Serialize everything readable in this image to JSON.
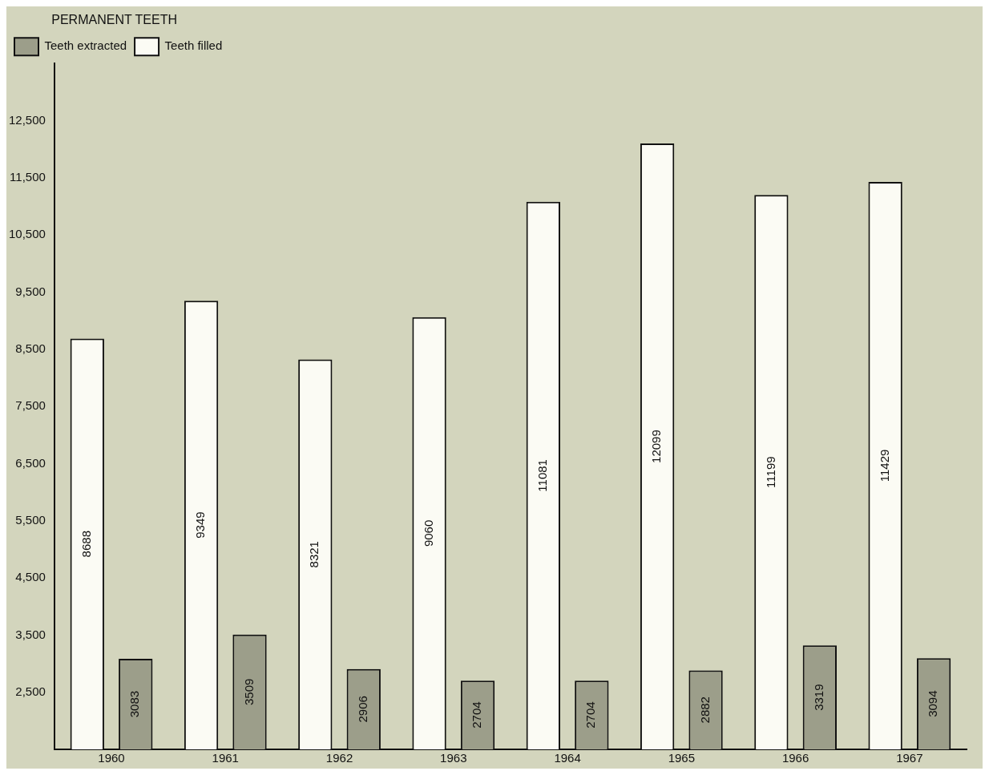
{
  "chart_data": {
    "type": "bar",
    "legend_title": "PERMANENT TEETH",
    "categories": [
      "1960",
      "1961",
      "1962",
      "1963",
      "1964",
      "1965",
      "1966",
      "1967"
    ],
    "series": [
      {
        "name": "Teeth filled",
        "color": "#fbfbf4",
        "values": [
          8688,
          9349,
          8321,
          9060,
          11081,
          12099,
          11199,
          11429
        ]
      },
      {
        "name": "Teeth extracted",
        "color": "#9c9e8a",
        "values": [
          3083,
          3509,
          2906,
          2704,
          2704,
          2882,
          3319,
          3094
        ]
      }
    ],
    "ylim": [
      1500,
      13500
    ],
    "yticks": [
      {
        "value": 2500,
        "label": "2,500"
      },
      {
        "value": 3500,
        "label": "3,500"
      },
      {
        "value": 4500,
        "label": "4,500"
      },
      {
        "value": 5500,
        "label": "5,500"
      },
      {
        "value": 6500,
        "label": "6,500"
      },
      {
        "value": 7500,
        "label": "7,500"
      },
      {
        "value": 8500,
        "label": "8,500"
      },
      {
        "value": 9500,
        "label": "9,500"
      },
      {
        "value": 10500,
        "label": "10,500"
      },
      {
        "value": 11500,
        "label": "11,500"
      },
      {
        "value": 12500,
        "label": "12,500"
      }
    ],
    "grid": false,
    "legend": "top left",
    "data_labels": true
  }
}
